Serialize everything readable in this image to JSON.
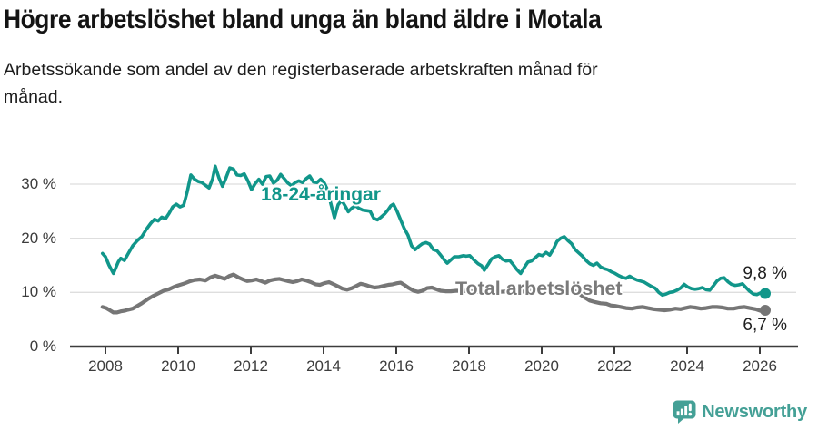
{
  "chart_data": {
    "type": "line",
    "title": "Högre arbetslöshet bland unga än bland äldre i Motala",
    "subtitle": "Arbetssökande som andel av den registerbaserade arbetskraften månad för månad.",
    "x_unit": "decimal_year",
    "xlim": [
      2007.8,
      2026.4
    ],
    "ylim": [
      0,
      35
    ],
    "grid": "horizontal",
    "legend_position": "inline-labels",
    "y_ticks": [
      {
        "value": 0,
        "label": "0 %"
      },
      {
        "value": 10,
        "label": "10 %"
      },
      {
        "value": 20,
        "label": "20 %"
      },
      {
        "value": 30,
        "label": "30 %"
      }
    ],
    "x_ticks": [
      {
        "value": 2008,
        "label": "2008"
      },
      {
        "value": 2010,
        "label": "2010"
      },
      {
        "value": 2012,
        "label": "2012"
      },
      {
        "value": 2014,
        "label": "2014"
      },
      {
        "value": 2016,
        "label": "2016"
      },
      {
        "value": 2018,
        "label": "2018"
      },
      {
        "value": 2020,
        "label": "2020"
      },
      {
        "value": 2022,
        "label": "2022"
      },
      {
        "value": 2024,
        "label": "2024"
      },
      {
        "value": 2026,
        "label": "2026"
      }
    ],
    "series": [
      {
        "name": "18-24-åringar",
        "color": "#11968a",
        "end_label": "9,8 %",
        "x": [
          2007.92,
          2008.0,
          2008.1,
          2008.22,
          2008.35,
          2008.42,
          2008.52,
          2008.62,
          2008.75,
          2008.88,
          2009.0,
          2009.12,
          2009.25,
          2009.35,
          2009.45,
          2009.55,
          2009.65,
          2009.75,
          2009.85,
          2009.95,
          2010.05,
          2010.15,
          2010.25,
          2010.35,
          2010.45,
          2010.55,
          2010.65,
          2010.75,
          2010.85,
          2010.95,
          2011.02,
          2011.12,
          2011.22,
          2011.32,
          2011.42,
          2011.52,
          2011.62,
          2011.72,
          2011.82,
          2011.92,
          2012.02,
          2012.12,
          2012.22,
          2012.32,
          2012.42,
          2012.52,
          2012.62,
          2012.72,
          2012.82,
          2012.92,
          2013.02,
          2013.12,
          2013.22,
          2013.32,
          2013.42,
          2013.52,
          2013.62,
          2013.72,
          2013.82,
          2013.92,
          2014.02,
          2014.12,
          2014.2,
          2014.3,
          2014.4,
          2014.5,
          2014.6,
          2014.68,
          2014.78,
          2014.88,
          2014.98,
          2015.08,
          2015.18,
          2015.28,
          2015.38,
          2015.48,
          2015.58,
          2015.68,
          2015.78,
          2015.85,
          2015.92,
          2016.02,
          2016.12,
          2016.22,
          2016.32,
          2016.42,
          2016.52,
          2016.62,
          2016.72,
          2016.82,
          2016.92,
          2017.02,
          2017.12,
          2017.22,
          2017.32,
          2017.4,
          2017.5,
          2017.6,
          2017.72,
          2017.85,
          2017.92,
          2018.02,
          2018.12,
          2018.25,
          2018.35,
          2018.42,
          2018.52,
          2018.62,
          2018.72,
          2018.82,
          2018.92,
          2019.02,
          2019.12,
          2019.22,
          2019.32,
          2019.42,
          2019.52,
          2019.62,
          2019.72,
          2019.82,
          2019.92,
          2020.02,
          2020.12,
          2020.22,
          2020.32,
          2020.42,
          2020.52,
          2020.62,
          2020.72,
          2020.82,
          2020.92,
          2021.02,
          2021.12,
          2021.22,
          2021.32,
          2021.42,
          2021.52,
          2021.62,
          2021.72,
          2021.82,
          2021.92,
          2022.02,
          2022.12,
          2022.22,
          2022.32,
          2022.42,
          2022.52,
          2022.62,
          2022.72,
          2022.82,
          2022.92,
          2023.02,
          2023.12,
          2023.22,
          2023.32,
          2023.42,
          2023.52,
          2023.62,
          2023.72,
          2023.82,
          2023.92,
          2024.02,
          2024.12,
          2024.22,
          2024.32,
          2024.42,
          2024.52,
          2024.62,
          2024.72,
          2024.82,
          2024.92,
          2025.02,
          2025.12,
          2025.22,
          2025.32,
          2025.42,
          2025.52,
          2025.62,
          2025.72,
          2025.82,
          2025.92,
          2026.05,
          2026.15
        ],
        "values": [
          17.2,
          16.6,
          15.0,
          13.5,
          15.6,
          16.3,
          15.9,
          17.1,
          18.6,
          19.6,
          20.3,
          21.6,
          22.8,
          23.5,
          23.2,
          23.9,
          23.6,
          24.6,
          25.8,
          26.3,
          25.8,
          26.1,
          28.6,
          31.7,
          30.9,
          30.5,
          30.3,
          29.8,
          29.3,
          31.0,
          33.3,
          31.2,
          29.6,
          31.2,
          33.0,
          32.8,
          31.7,
          31.6,
          31.9,
          30.6,
          29.0,
          30.1,
          30.9,
          30.0,
          31.4,
          31.5,
          30.2,
          30.7,
          31.8,
          31.0,
          30.2,
          29.7,
          30.3,
          30.6,
          30.3,
          31.0,
          31.5,
          30.4,
          30.3,
          30.9,
          30.2,
          28.8,
          26.4,
          23.8,
          26.2,
          27.0,
          25.9,
          24.9,
          25.6,
          26.0,
          25.5,
          25.2,
          25.1,
          25.0,
          23.7,
          23.4,
          23.9,
          24.5,
          25.3,
          26.0,
          26.3,
          25.0,
          23.4,
          21.8,
          20.6,
          18.6,
          17.9,
          18.5,
          19.0,
          19.2,
          18.9,
          17.9,
          17.7,
          16.9,
          16.0,
          15.4,
          16.0,
          16.6,
          16.6,
          16.8,
          16.7,
          16.8,
          16.1,
          15.3,
          14.9,
          14.1,
          15.1,
          16.2,
          16.6,
          16.8,
          16.1,
          15.8,
          15.9,
          15.1,
          14.2,
          13.5,
          14.6,
          15.6,
          15.8,
          16.4,
          17.0,
          16.8,
          17.4,
          16.9,
          18.0,
          19.4,
          20.0,
          20.3,
          19.6,
          19.0,
          17.9,
          17.3,
          16.7,
          15.9,
          15.3,
          15.0,
          15.4,
          14.7,
          14.4,
          14.2,
          13.8,
          13.5,
          13.1,
          12.8,
          12.6,
          13.0,
          12.6,
          12.3,
          12.1,
          11.9,
          11.5,
          11.1,
          10.8,
          10.0,
          9.5,
          9.7,
          10.0,
          10.1,
          10.4,
          10.8,
          11.5,
          11.0,
          10.7,
          10.6,
          10.7,
          10.9,
          10.5,
          10.4,
          11.2,
          12.1,
          12.6,
          12.7,
          12.0,
          11.5,
          11.3,
          11.4,
          11.6,
          10.9,
          10.2,
          9.7,
          9.6,
          10.0,
          9.8
        ]
      },
      {
        "name": "Total arbetslöshet",
        "color": "#767676",
        "end_label": "6,7 %",
        "x": [
          2007.92,
          2008.02,
          2008.12,
          2008.22,
          2008.32,
          2008.42,
          2008.52,
          2008.62,
          2008.75,
          2008.88,
          2009.0,
          2009.15,
          2009.3,
          2009.45,
          2009.6,
          2009.75,
          2009.88,
          2010.0,
          2010.15,
          2010.3,
          2010.45,
          2010.6,
          2010.75,
          2010.9,
          2011.02,
          2011.15,
          2011.28,
          2011.4,
          2011.52,
          2011.65,
          2011.78,
          2011.9,
          2012.02,
          2012.15,
          2012.28,
          2012.4,
          2012.52,
          2012.65,
          2012.78,
          2012.9,
          2013.02,
          2013.15,
          2013.28,
          2013.4,
          2013.52,
          2013.65,
          2013.78,
          2013.9,
          2014.02,
          2014.15,
          2014.28,
          2014.4,
          2014.52,
          2014.65,
          2014.78,
          2014.9,
          2015.02,
          2015.15,
          2015.28,
          2015.4,
          2015.52,
          2015.65,
          2015.78,
          2015.9,
          2016.02,
          2016.12,
          2016.22,
          2016.35,
          2016.48,
          2016.6,
          2016.72,
          2016.85,
          2016.98,
          2017.1,
          2017.22,
          2017.35,
          2017.5,
          2017.65,
          2017.85,
          2018.1,
          2018.35,
          2018.6,
          2018.85,
          2019.1,
          2019.35,
          2019.6,
          2019.85,
          2020.02,
          2020.22,
          2020.42,
          2020.6,
          2020.8,
          2020.98,
          2021.15,
          2021.32,
          2021.48,
          2021.62,
          2021.78,
          2021.9,
          2022.02,
          2022.18,
          2022.32,
          2022.48,
          2022.62,
          2022.78,
          2022.92,
          2023.08,
          2023.22,
          2023.38,
          2023.52,
          2023.68,
          2023.82,
          2023.95,
          2024.08,
          2024.22,
          2024.38,
          2024.52,
          2024.68,
          2024.82,
          2024.98,
          2025.12,
          2025.28,
          2025.42,
          2025.58,
          2025.72,
          2025.88,
          2026.02,
          2026.15
        ],
        "values": [
          7.3,
          7.1,
          6.7,
          6.3,
          6.3,
          6.5,
          6.6,
          6.8,
          7.0,
          7.5,
          8.0,
          8.7,
          9.3,
          9.8,
          10.3,
          10.6,
          11.0,
          11.3,
          11.6,
          12.0,
          12.3,
          12.4,
          12.2,
          12.8,
          13.1,
          12.8,
          12.5,
          13.0,
          13.3,
          12.8,
          12.4,
          12.1,
          12.2,
          12.4,
          12.1,
          11.8,
          12.2,
          12.4,
          12.5,
          12.3,
          12.1,
          11.9,
          12.1,
          12.4,
          12.2,
          11.9,
          11.5,
          11.4,
          11.7,
          11.9,
          11.5,
          11.1,
          10.7,
          10.5,
          10.8,
          11.2,
          11.6,
          11.4,
          11.1,
          10.9,
          11.0,
          11.2,
          11.4,
          11.5,
          11.7,
          11.8,
          11.4,
          10.8,
          10.3,
          10.1,
          10.3,
          10.8,
          10.9,
          10.6,
          10.3,
          10.2,
          10.2,
          10.3,
          10.3,
          10.2,
          10.0,
          10.0,
          10.1,
          10.2,
          10.1,
          10.2,
          10.4,
          10.5,
          10.9,
          11.2,
          11.1,
          10.6,
          10.0,
          9.2,
          8.5,
          8.2,
          8.0,
          7.9,
          7.6,
          7.5,
          7.3,
          7.1,
          7.0,
          7.2,
          7.3,
          7.1,
          6.9,
          6.8,
          6.7,
          6.8,
          7.0,
          6.9,
          7.1,
          7.3,
          7.2,
          7.0,
          7.1,
          7.3,
          7.3,
          7.2,
          7.0,
          7.0,
          7.2,
          7.3,
          7.1,
          6.9,
          6.6,
          6.7
        ]
      }
    ]
  },
  "footer": {
    "brand": "Newsworthy"
  }
}
